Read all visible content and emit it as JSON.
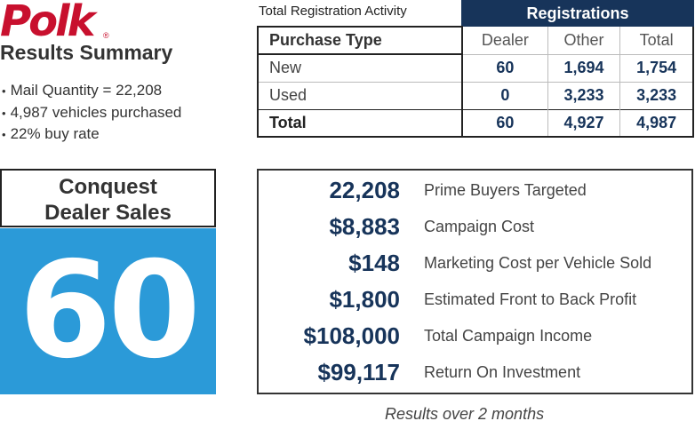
{
  "brand": {
    "logo_text": "Polk",
    "reg_mark": "®",
    "color": "#c8102e"
  },
  "summary": {
    "title": "Results Summary",
    "bullets": [
      "Mail Quantity = 22,208",
      "4,987 vehicles purchased",
      "22% buy rate"
    ]
  },
  "table": {
    "caption": "Total Registration Activity",
    "group_header": "Registrations",
    "columns": [
      "Purchase Type",
      "Dealer",
      "Other",
      "Total"
    ],
    "rows": [
      {
        "type": "New",
        "dealer": "60",
        "other": "1,694",
        "total": "1,754"
      },
      {
        "type": "Used",
        "dealer": "0",
        "other": "3,233",
        "total": "3,233"
      },
      {
        "type": "Total",
        "dealer": "60",
        "other": "4,927",
        "total": "4,987"
      }
    ],
    "header_color": "#17345a"
  },
  "conquest": {
    "label_line1": "Conquest",
    "label_line2": "Dealer Sales",
    "value": "60",
    "color": "#2b9ad8"
  },
  "metrics": [
    {
      "value": "22,208",
      "label": "Prime Buyers Targeted"
    },
    {
      "value": "$8,883",
      "label": "Campaign Cost"
    },
    {
      "value": "$148",
      "label": "Marketing Cost per Vehicle Sold"
    },
    {
      "value": "$1,800",
      "label": "Estimated Front to Back Profit"
    },
    {
      "value": "$108,000",
      "label": "Total Campaign Income"
    },
    {
      "value": "$99,117",
      "label": "Return On Investment"
    }
  ],
  "footnote": "Results over 2 months"
}
